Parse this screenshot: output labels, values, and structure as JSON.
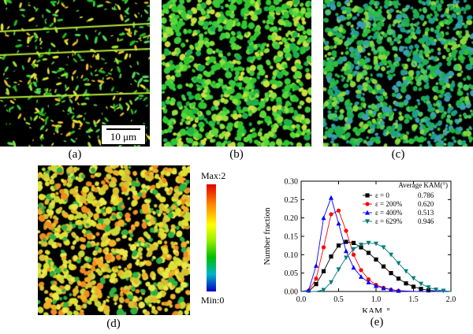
{
  "figure": {
    "panels": [
      {
        "id": "a",
        "label": "(a)",
        "texture": "sparse-elongated-grains"
      },
      {
        "id": "b",
        "label": "(b)",
        "texture": "dense-green-grains"
      },
      {
        "id": "c",
        "label": "(c)",
        "texture": "dense-fine-grains"
      },
      {
        "id": "d",
        "label": "(d)",
        "texture": "yellow-orange-grains"
      }
    ],
    "scale_bar": "10 μm",
    "colorbar": {
      "max_label": "Max:2",
      "min_label": "Min:0"
    },
    "chart_label": "(e)"
  },
  "colors": {
    "eps0": "#000000",
    "eps200": "#ff0000",
    "eps400": "#0000ff",
    "eps629": "#007c7c"
  },
  "chart_data": {
    "type": "line",
    "xlabel": "KAM, °",
    "ylabel": "Number fraction",
    "xlim": [
      0.0,
      2.0
    ],
    "ylim": [
      0.0,
      0.3
    ],
    "xticks": [
      "0.0",
      "0.5",
      "1.0",
      "1.5",
      "2.0"
    ],
    "yticks": [
      "0.00",
      "0.05",
      "0.10",
      "0.15",
      "0.20",
      "0.25",
      "0.30"
    ],
    "legend_title": "Average KAM(°)",
    "legend_position": "top-right",
    "series": [
      {
        "name": "ε = 0",
        "average": "0.786",
        "marker": "square",
        "color": "#000000",
        "x": [
          0.0,
          0.1,
          0.2,
          0.3,
          0.4,
          0.5,
          0.6,
          0.7,
          0.8,
          0.9,
          1.0,
          1.1,
          1.2,
          1.3,
          1.4,
          1.5,
          1.6,
          1.7,
          1.8,
          1.9,
          2.0
        ],
        "y": [
          0.0,
          0.0,
          0.02,
          0.055,
          0.095,
          0.125,
          0.135,
          0.132,
          0.12,
          0.105,
          0.087,
          0.068,
          0.05,
          0.035,
          0.022,
          0.013,
          0.007,
          0.003,
          0.001,
          0.0,
          0.0
        ]
      },
      {
        "name": "ε = 200%",
        "average": "0.620",
        "marker": "circle",
        "color": "#ff0000",
        "x": [
          0.0,
          0.1,
          0.2,
          0.3,
          0.4,
          0.5,
          0.6,
          0.7,
          0.8,
          0.9,
          1.0,
          1.1,
          1.2,
          1.3,
          1.4,
          1.5,
          1.6,
          1.7,
          1.8,
          1.9,
          2.0
        ],
        "y": [
          0.0,
          0.002,
          0.035,
          0.12,
          0.21,
          0.22,
          0.165,
          0.1,
          0.058,
          0.033,
          0.018,
          0.01,
          0.005,
          0.002,
          0.001,
          0.0,
          0.0,
          0.0,
          0.0,
          0.0,
          0.0
        ]
      },
      {
        "name": "ε = 400%",
        "average": "0.513",
        "marker": "triangle-up",
        "color": "#0000ff",
        "x": [
          0.0,
          0.1,
          0.2,
          0.3,
          0.4,
          0.5,
          0.6,
          0.7,
          0.8,
          0.9,
          1.0,
          1.1,
          1.2,
          1.3,
          1.4,
          1.5,
          1.6,
          1.7,
          1.8,
          1.9,
          2.0
        ],
        "y": [
          0.0,
          0.003,
          0.07,
          0.2,
          0.255,
          0.185,
          0.11,
          0.065,
          0.04,
          0.025,
          0.015,
          0.009,
          0.005,
          0.002,
          0.001,
          0.0,
          0.0,
          0.0,
          0.0,
          0.0,
          0.0
        ]
      },
      {
        "name": "ε = 629%",
        "average": "0.946",
        "marker": "triangle-down",
        "color": "#007c7c",
        "x": [
          0.0,
          0.1,
          0.2,
          0.3,
          0.4,
          0.5,
          0.6,
          0.7,
          0.8,
          0.9,
          1.0,
          1.1,
          1.2,
          1.3,
          1.4,
          1.5,
          1.6,
          1.7,
          1.8,
          1.9,
          2.0
        ],
        "y": [
          0.0,
          0.0,
          0.0,
          0.004,
          0.025,
          0.06,
          0.092,
          0.115,
          0.127,
          0.132,
          0.13,
          0.12,
          0.1,
          0.077,
          0.055,
          0.036,
          0.021,
          0.011,
          0.005,
          0.002,
          0.0
        ]
      }
    ]
  }
}
